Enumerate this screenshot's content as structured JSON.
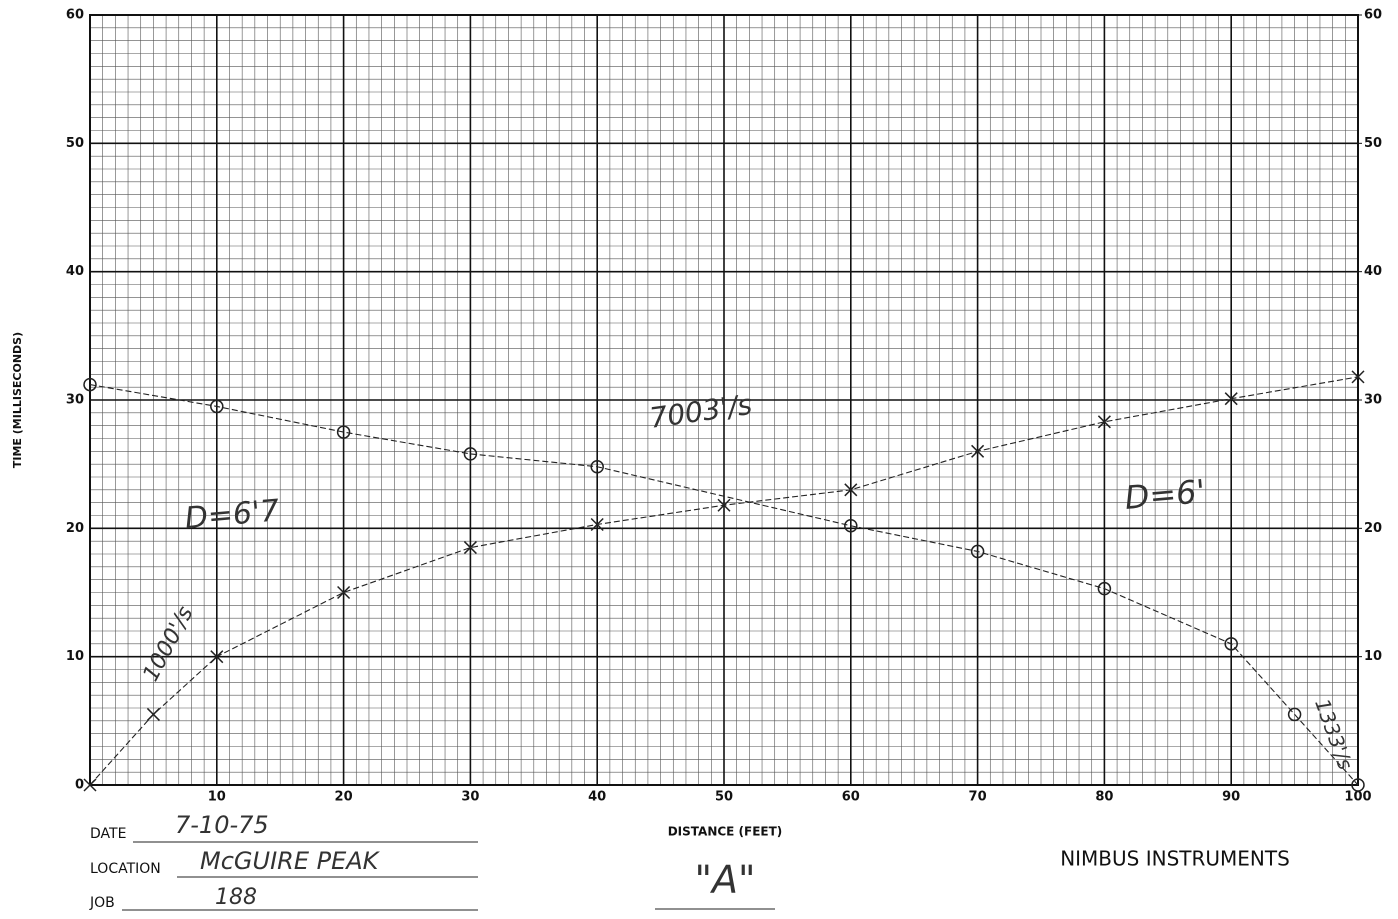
{
  "chart_data": {
    "type": "scatter",
    "x_label": "DISTANCE (FEET)",
    "y_label": "TIME (MILLISECONDS)",
    "xlim": [
      0,
      100
    ],
    "xticks": [
      10,
      20,
      30,
      40,
      50,
      60,
      70,
      80,
      90,
      100
    ],
    "ylim": [
      0,
      60
    ],
    "yticks": [
      0,
      10,
      20,
      30,
      40,
      50,
      60
    ],
    "y2lim": [
      0,
      60
    ],
    "y2ticks": [
      10,
      20,
      30,
      40,
      50,
      60
    ],
    "grid": true,
    "series": [
      {
        "color": "#222222",
        "marker": "x",
        "x": [
          0,
          5,
          10,
          20,
          30,
          40,
          50,
          60,
          70,
          80,
          90,
          100
        ],
        "values": [
          0,
          5.5,
          10,
          15,
          18.5,
          20.3,
          21.8,
          23,
          26,
          28.3,
          30.1,
          31.8
        ]
      },
      {
        "color": "#222222",
        "marker": "o",
        "x": [
          0,
          10,
          20,
          30,
          40,
          60,
          70,
          80,
          90,
          95,
          100
        ],
        "values": [
          31.2,
          29.5,
          27.5,
          25.8,
          24.8,
          20.2,
          18.2,
          15.3,
          11,
          5.5,
          0
        ]
      }
    ],
    "annotations": [
      "1000'/s",
      "D=6'7",
      "7003'/s",
      "D=6'",
      "1333'/s"
    ]
  },
  "form": {
    "date_label": "DATE",
    "date": "7-10-75",
    "location_label": "LOCATION",
    "location": "McGUIRE PEAK",
    "job_label": "JOB",
    "job": "188",
    "line": "\"A\"",
    "maker": "NIMBUS INSTRUMENTS"
  }
}
